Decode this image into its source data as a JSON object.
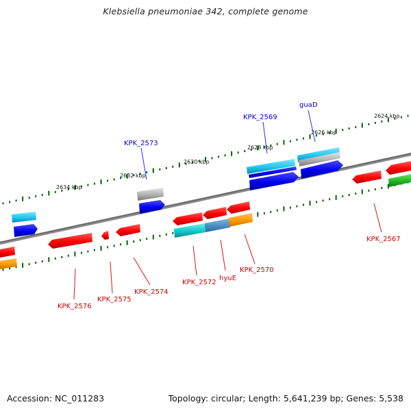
{
  "title": "Klebsiella pneumoniae 342, complete genome",
  "footer": {
    "accession_label": "Accession:",
    "accession": "NC_011283",
    "topology": "Topology: circular; Length: 5,641,239 bp; Genes: 5,538"
  },
  "colors": {
    "backbone": "#7a7a7a",
    "red": "#ff0000",
    "blue": "#0000ee",
    "cyan": "#22c8e6",
    "teal": "#10c8c8",
    "steel": "#4a8ec2",
    "orange": "#ff9900",
    "gray": "#a0a0a0",
    "green": "#22b522",
    "label_top": "#0000cc",
    "label_bottom": "#cc0000",
    "ticks": "#006400"
  },
  "kbp_labels": [
    "2624 kbp",
    "2626 kbp",
    "2628 kbp",
    "2630 kbp",
    "2632 kbp",
    "2634 kbp"
  ],
  "gene_labels_top": [
    "KPK_2573",
    "KPK_2569",
    "guaD"
  ],
  "gene_labels_bottom": [
    "KPK_2576",
    "KPK_2575",
    "KPK_2574",
    "KPK_2572",
    "hyuE",
    "KPK_2570",
    "KPK_2567"
  ]
}
